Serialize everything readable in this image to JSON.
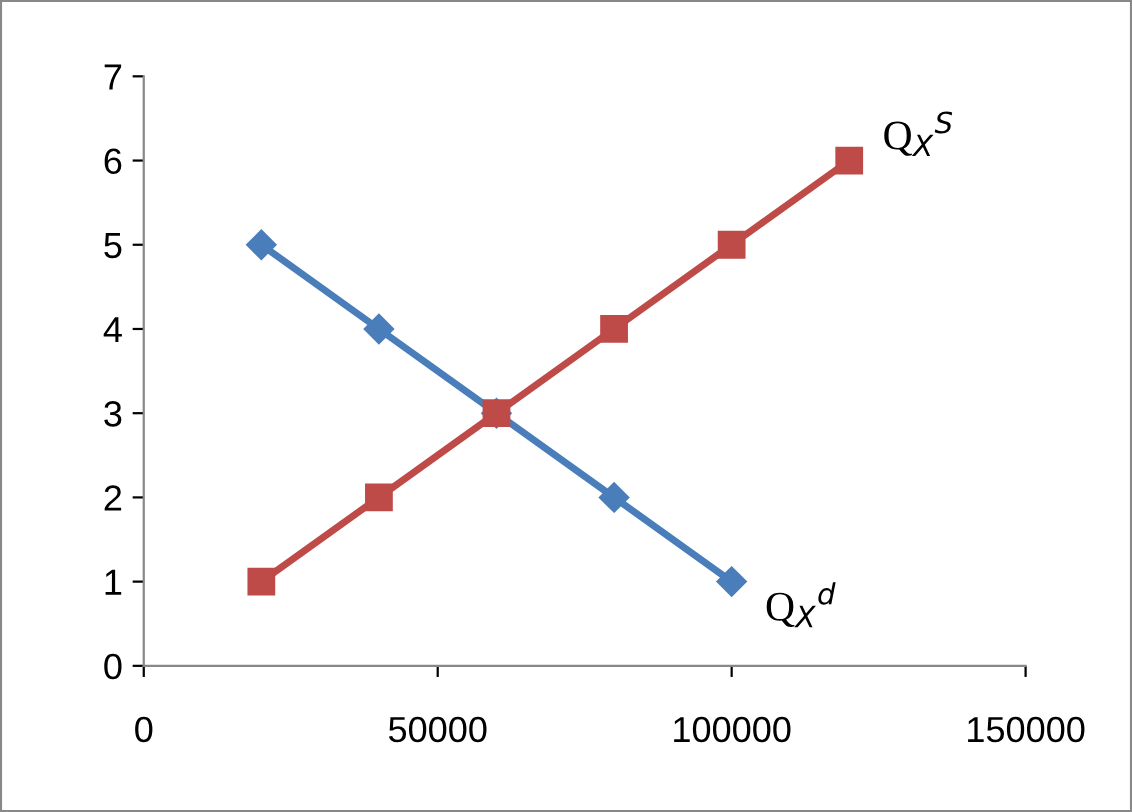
{
  "chart_data": {
    "type": "line",
    "series": [
      {
        "name": "Q$_{X}$$^{d}$",
        "color": "#4a7ebb",
        "marker": "diamond",
        "x": [
          20000,
          40000,
          60000,
          80000,
          100000
        ],
        "values": [
          5,
          4,
          3,
          2,
          1
        ]
      },
      {
        "name": "Q$_{X}$$^{S}$",
        "color": "#be4b48",
        "marker": "square",
        "x": [
          20000,
          40000,
          60000,
          80000,
          100000,
          120000
        ],
        "values": [
          1,
          2,
          3,
          4,
          5,
          6
        ]
      }
    ],
    "xlim": [
      0,
      150000
    ],
    "xticks": [
      0,
      50000,
      100000,
      150000
    ],
    "ylim": [
      0,
      7
    ],
    "yticks": [
      0,
      1,
      2,
      3,
      4,
      5,
      6,
      7
    ],
    "grid": false,
    "legend": false,
    "line_style": "solid"
  }
}
